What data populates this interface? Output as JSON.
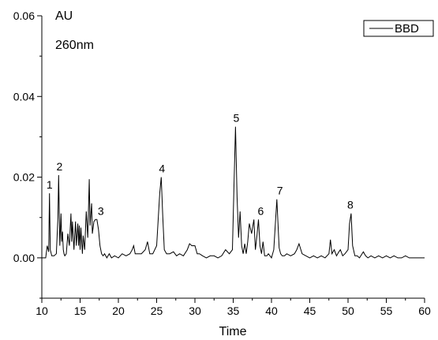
{
  "chart_data": {
    "type": "line",
    "title": "",
    "xlabel": "Time",
    "ylabel": "AU",
    "wavelength_label": "260nm",
    "xlim": [
      10,
      60
    ],
    "ylim": [
      -0.01,
      0.06
    ],
    "x_ticks": [
      10,
      15,
      20,
      25,
      30,
      35,
      40,
      45,
      50,
      55,
      60
    ],
    "y_ticks": [
      "0.00",
      "0.02",
      "0.04",
      "0.06"
    ],
    "y_tick_values": [
      0.0,
      0.02,
      0.04,
      0.06
    ],
    "grid": false,
    "legend_position": "top-right",
    "series": [
      {
        "name": "BBD",
        "x": [
          10.0,
          10.5,
          10.7,
          10.9,
          11.0,
          11.1,
          11.3,
          11.6,
          11.9,
          12.1,
          12.2,
          12.35,
          12.5,
          12.6,
          12.7,
          12.8,
          12.9,
          13.0,
          13.2,
          13.4,
          13.6,
          13.8,
          13.9,
          14.0,
          14.2,
          14.4,
          14.5,
          14.7,
          14.8,
          14.9,
          15.0,
          15.1,
          15.3,
          15.4,
          15.6,
          15.8,
          16.0,
          16.2,
          16.3,
          16.5,
          16.6,
          16.8,
          17.0,
          17.2,
          17.4,
          17.6,
          17.8,
          18.0,
          18.2,
          18.5,
          18.8,
          19.1,
          19.5,
          20.0,
          20.5,
          21.0,
          21.5,
          21.8,
          22.0,
          22.2,
          22.6,
          23.0,
          23.5,
          23.8,
          24.1,
          24.5,
          25.0,
          25.4,
          25.6,
          25.8,
          26.0,
          26.3,
          26.7,
          27.2,
          27.6,
          28.0,
          28.5,
          29.0,
          29.3,
          29.6,
          30.0,
          30.3,
          30.6,
          31.0,
          31.5,
          32.0,
          32.5,
          33.0,
          33.5,
          34.0,
          34.5,
          34.9,
          35.1,
          35.3,
          35.5,
          35.7,
          35.9,
          36.1,
          36.3,
          36.5,
          36.7,
          36.9,
          37.1,
          37.4,
          37.7,
          37.9,
          38.1,
          38.3,
          38.5,
          38.7,
          38.9,
          39.1,
          39.4,
          39.6,
          39.8,
          40.0,
          40.3,
          40.7,
          41.0,
          41.2,
          41.4,
          41.7,
          42.0,
          42.5,
          43.0,
          43.3,
          43.6,
          44.0,
          44.5,
          45.0,
          45.5,
          46.0,
          46.5,
          47.0,
          47.5,
          47.7,
          47.9,
          48.2,
          48.5,
          48.8,
          49.0,
          49.3,
          49.6,
          50.0,
          50.2,
          50.4,
          50.6,
          50.9,
          51.2,
          51.5,
          52.0,
          52.3,
          52.6,
          53.0,
          53.5,
          54.0,
          54.5,
          55.0,
          55.5,
          56.0,
          56.5,
          57.0,
          57.5,
          58.0,
          58.5,
          59.0,
          59.5,
          60.0
        ],
        "y": [
          0.0,
          0.0,
          0.003,
          0.0015,
          0.016,
          0.002,
          0.0005,
          0.0005,
          0.001,
          0.01,
          0.0205,
          0.003,
          0.011,
          0.004,
          0.0065,
          0.002,
          0.001,
          0.0005,
          0.001,
          0.006,
          0.003,
          0.011,
          0.004,
          0.009,
          0.002,
          0.009,
          0.003,
          0.0085,
          0.003,
          0.008,
          0.002,
          0.0075,
          0.001,
          0.0055,
          0.002,
          0.0115,
          0.005,
          0.0195,
          0.008,
          0.0135,
          0.006,
          0.009,
          0.0095,
          0.0095,
          0.007,
          0.003,
          0.001,
          0.0005,
          0.001,
          0.0,
          0.001,
          0.0,
          0.0005,
          0.0,
          0.001,
          0.0005,
          0.001,
          0.002,
          0.003,
          0.001,
          0.001,
          0.001,
          0.002,
          0.004,
          0.001,
          0.001,
          0.003,
          0.016,
          0.02,
          0.01,
          0.002,
          0.001,
          0.001,
          0.0015,
          0.0005,
          0.001,
          0.0005,
          0.002,
          0.0035,
          0.003,
          0.003,
          0.001,
          0.001,
          0.0005,
          0.0,
          0.0005,
          0.0005,
          0.0,
          0.0005,
          0.002,
          0.001,
          0.002,
          0.018,
          0.0325,
          0.015,
          0.005,
          0.0115,
          0.003,
          0.001,
          0.0035,
          0.001,
          0.004,
          0.0085,
          0.006,
          0.0095,
          0.002,
          0.0055,
          0.0095,
          0.003,
          0.001,
          0.004,
          0.0005,
          0.0005,
          0.001,
          0.0005,
          0.0,
          0.002,
          0.0145,
          0.0025,
          0.001,
          0.0005,
          0.0005,
          0.001,
          0.0005,
          0.001,
          0.002,
          0.0035,
          0.001,
          0.0005,
          0.0,
          0.0005,
          0.0,
          0.0005,
          0.0,
          0.001,
          0.0045,
          0.001,
          0.002,
          0.0005,
          0.0015,
          0.002,
          0.0005,
          0.001,
          0.002,
          0.0085,
          0.011,
          0.003,
          0.0005,
          0.0005,
          0.0,
          0.0015,
          0.0005,
          0.0,
          0.0005,
          0.0,
          0.0005,
          0.0,
          0.0005,
          0.0,
          0.0005,
          0.0,
          0.0,
          0.0005,
          0.0,
          0.0,
          0.0,
          0.0,
          0.0
        ]
      }
    ],
    "peak_labels": [
      {
        "label": "1",
        "x": 10.9,
        "y": 0.016
      },
      {
        "label": "2",
        "x": 12.2,
        "y": 0.0205
      },
      {
        "label": "3",
        "x": 17.6,
        "y": 0.0095
      },
      {
        "label": "4",
        "x": 25.6,
        "y": 0.02
      },
      {
        "label": "5",
        "x": 35.3,
        "y": 0.0325
      },
      {
        "label": "6",
        "x": 38.5,
        "y": 0.0095
      },
      {
        "label": "7",
        "x": 41.0,
        "y": 0.0145
      },
      {
        "label": "8",
        "x": 50.2,
        "y": 0.011
      }
    ]
  }
}
